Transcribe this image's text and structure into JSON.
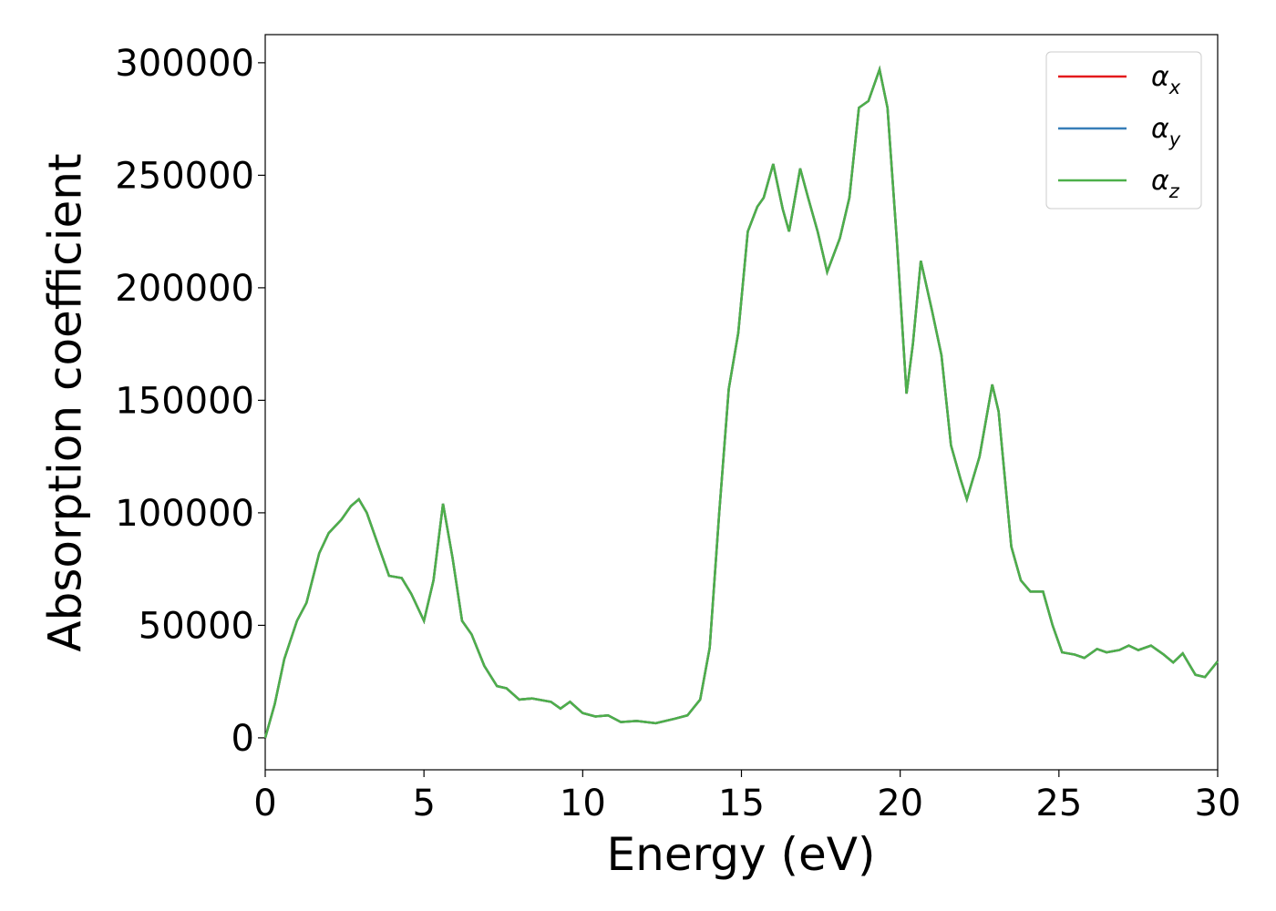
{
  "chart_data": {
    "type": "line",
    "xlabel": "Energy (eV)",
    "ylabel": "Absorption coefficient",
    "x": [
      0,
      0.3,
      0.6,
      1.0,
      1.3,
      1.7,
      2.0,
      2.4,
      2.7,
      2.95,
      3.2,
      3.5,
      3.9,
      4.3,
      4.6,
      5.0,
      5.3,
      5.6,
      5.9,
      6.2,
      6.5,
      6.9,
      7.3,
      7.6,
      8.0,
      8.4,
      9.0,
      9.3,
      9.6,
      10.0,
      10.4,
      10.8,
      11.2,
      11.7,
      12.3,
      12.9,
      13.3,
      13.7,
      14.0,
      14.3,
      14.6,
      14.9,
      15.2,
      15.5,
      15.7,
      16.0,
      16.3,
      16.5,
      16.85,
      17.1,
      17.4,
      17.7,
      18.1,
      18.4,
      18.7,
      19.0,
      19.35,
      19.6,
      19.9,
      20.2,
      20.4,
      20.65,
      21.0,
      21.3,
      21.6,
      21.9,
      22.1,
      22.5,
      22.9,
      23.1,
      23.5,
      23.8,
      24.1,
      24.5,
      24.8,
      25.1,
      25.5,
      25.8,
      26.2,
      26.5,
      26.9,
      27.2,
      27.5,
      27.9,
      28.3,
      28.6,
      28.9,
      29.3,
      29.6,
      30
    ],
    "series": [
      {
        "name": "αx",
        "color": "#e41a1c",
        "values": [
          0,
          15000,
          35000,
          52000,
          60000,
          82000,
          91000,
          97000,
          103000,
          106000,
          100000,
          88000,
          72000,
          71000,
          64000,
          52000,
          70000,
          104000,
          80000,
          52000,
          46000,
          32000,
          23000,
          22000,
          17000,
          17500,
          16000,
          13000,
          16000,
          11000,
          9500,
          10000,
          7000,
          7500,
          6500,
          8500,
          10000,
          17000,
          40000,
          100000,
          155000,
          180000,
          225000,
          236000,
          240000,
          255000,
          235000,
          225000,
          253000,
          240000,
          225000,
          207000,
          222000,
          240000,
          280000,
          283000,
          297000,
          280000,
          220000,
          153000,
          175000,
          212000,
          190000,
          170000,
          130000,
          115000,
          106000,
          125000,
          157000,
          145000,
          85000,
          70000,
          65000,
          65000,
          50000,
          38000,
          37000,
          35500,
          39500,
          38000,
          39000,
          41000,
          39000,
          41000,
          37000,
          33500,
          37500,
          28000,
          27000,
          34000
        ]
      },
      {
        "name": "αy",
        "color": "#377eb8",
        "values": [
          0,
          15000,
          35000,
          52000,
          60000,
          82000,
          91000,
          97000,
          103000,
          106000,
          100000,
          88000,
          72000,
          71000,
          64000,
          52000,
          70000,
          104000,
          80000,
          52000,
          46000,
          32000,
          23000,
          22000,
          17000,
          17500,
          16000,
          13000,
          16000,
          11000,
          9500,
          10000,
          7000,
          7500,
          6500,
          8500,
          10000,
          17000,
          40000,
          100000,
          155000,
          180000,
          225000,
          236000,
          240000,
          255000,
          235000,
          225000,
          253000,
          240000,
          225000,
          207000,
          222000,
          240000,
          280000,
          283000,
          297000,
          280000,
          220000,
          153000,
          175000,
          212000,
          190000,
          170000,
          130000,
          115000,
          106000,
          125000,
          157000,
          145000,
          85000,
          70000,
          65000,
          65000,
          50000,
          38000,
          37000,
          35500,
          39500,
          38000,
          39000,
          41000,
          39000,
          41000,
          37000,
          33500,
          37500,
          28000,
          27000,
          34000
        ]
      },
      {
        "name": "αz",
        "color": "#4daf4a",
        "values": [
          0,
          15000,
          35000,
          52000,
          60000,
          82000,
          91000,
          97000,
          103000,
          106000,
          100000,
          88000,
          72000,
          71000,
          64000,
          52000,
          70000,
          104000,
          80000,
          52000,
          46000,
          32000,
          23000,
          22000,
          17000,
          17500,
          16000,
          13000,
          16000,
          11000,
          9500,
          10000,
          7000,
          7500,
          6500,
          8500,
          10000,
          17000,
          40000,
          100000,
          155000,
          180000,
          225000,
          236000,
          240000,
          255000,
          235000,
          225000,
          253000,
          240000,
          225000,
          207000,
          222000,
          240000,
          280000,
          283000,
          297000,
          280000,
          220000,
          153000,
          175000,
          212000,
          190000,
          170000,
          130000,
          115000,
          106000,
          125000,
          157000,
          145000,
          85000,
          70000,
          65000,
          65000,
          50000,
          38000,
          37000,
          35500,
          39500,
          38000,
          39000,
          41000,
          39000,
          41000,
          37000,
          33500,
          37500,
          28000,
          27000,
          34000
        ]
      }
    ],
    "xlim": [
      0,
      30
    ],
    "xticks": [
      0,
      5,
      10,
      15,
      20,
      25,
      30
    ],
    "ylim": [
      -14200,
      312500
    ],
    "yticks": [
      0,
      50000,
      100000,
      150000,
      200000,
      250000,
      300000
    ],
    "legend": "upper right",
    "grid": false
  }
}
